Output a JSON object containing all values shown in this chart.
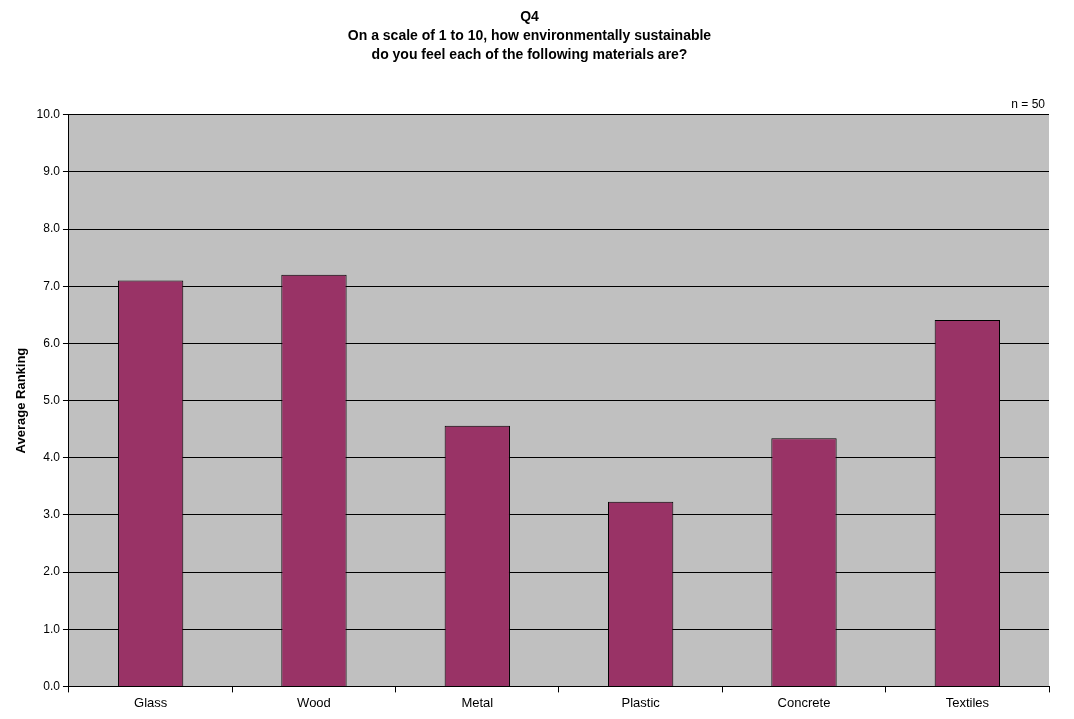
{
  "chart_data": {
    "type": "bar",
    "title": "Q4\nOn a scale of 1 to 10, how environmentally sustainable\ndo you feel each of the following materials are?",
    "ylabel": "Average Ranking",
    "annotations": [
      "n = 50"
    ],
    "categories": [
      "Glass",
      "Wood",
      "Metal",
      "Plastic",
      "Concrete",
      "Textiles"
    ],
    "values": [
      7.1,
      7.2,
      4.56,
      3.23,
      4.34,
      6.41
    ],
    "color": "#993366",
    "ylim": [
      0,
      10
    ],
    "yticks": [
      {
        "value": 0,
        "label": "0.0"
      },
      {
        "value": 1,
        "label": "1.0"
      },
      {
        "value": 2,
        "label": "2.0"
      },
      {
        "value": 3,
        "label": "3.0"
      },
      {
        "value": 4,
        "label": "4.0"
      },
      {
        "value": 5,
        "label": "5.0"
      },
      {
        "value": 6,
        "label": "6.0"
      },
      {
        "value": 7,
        "label": "7.0"
      },
      {
        "value": 8,
        "label": "8.0"
      },
      {
        "value": 9,
        "label": "9.0"
      },
      {
        "value": 10,
        "label": "10.0"
      }
    ],
    "grid": "y",
    "legend": false
  }
}
